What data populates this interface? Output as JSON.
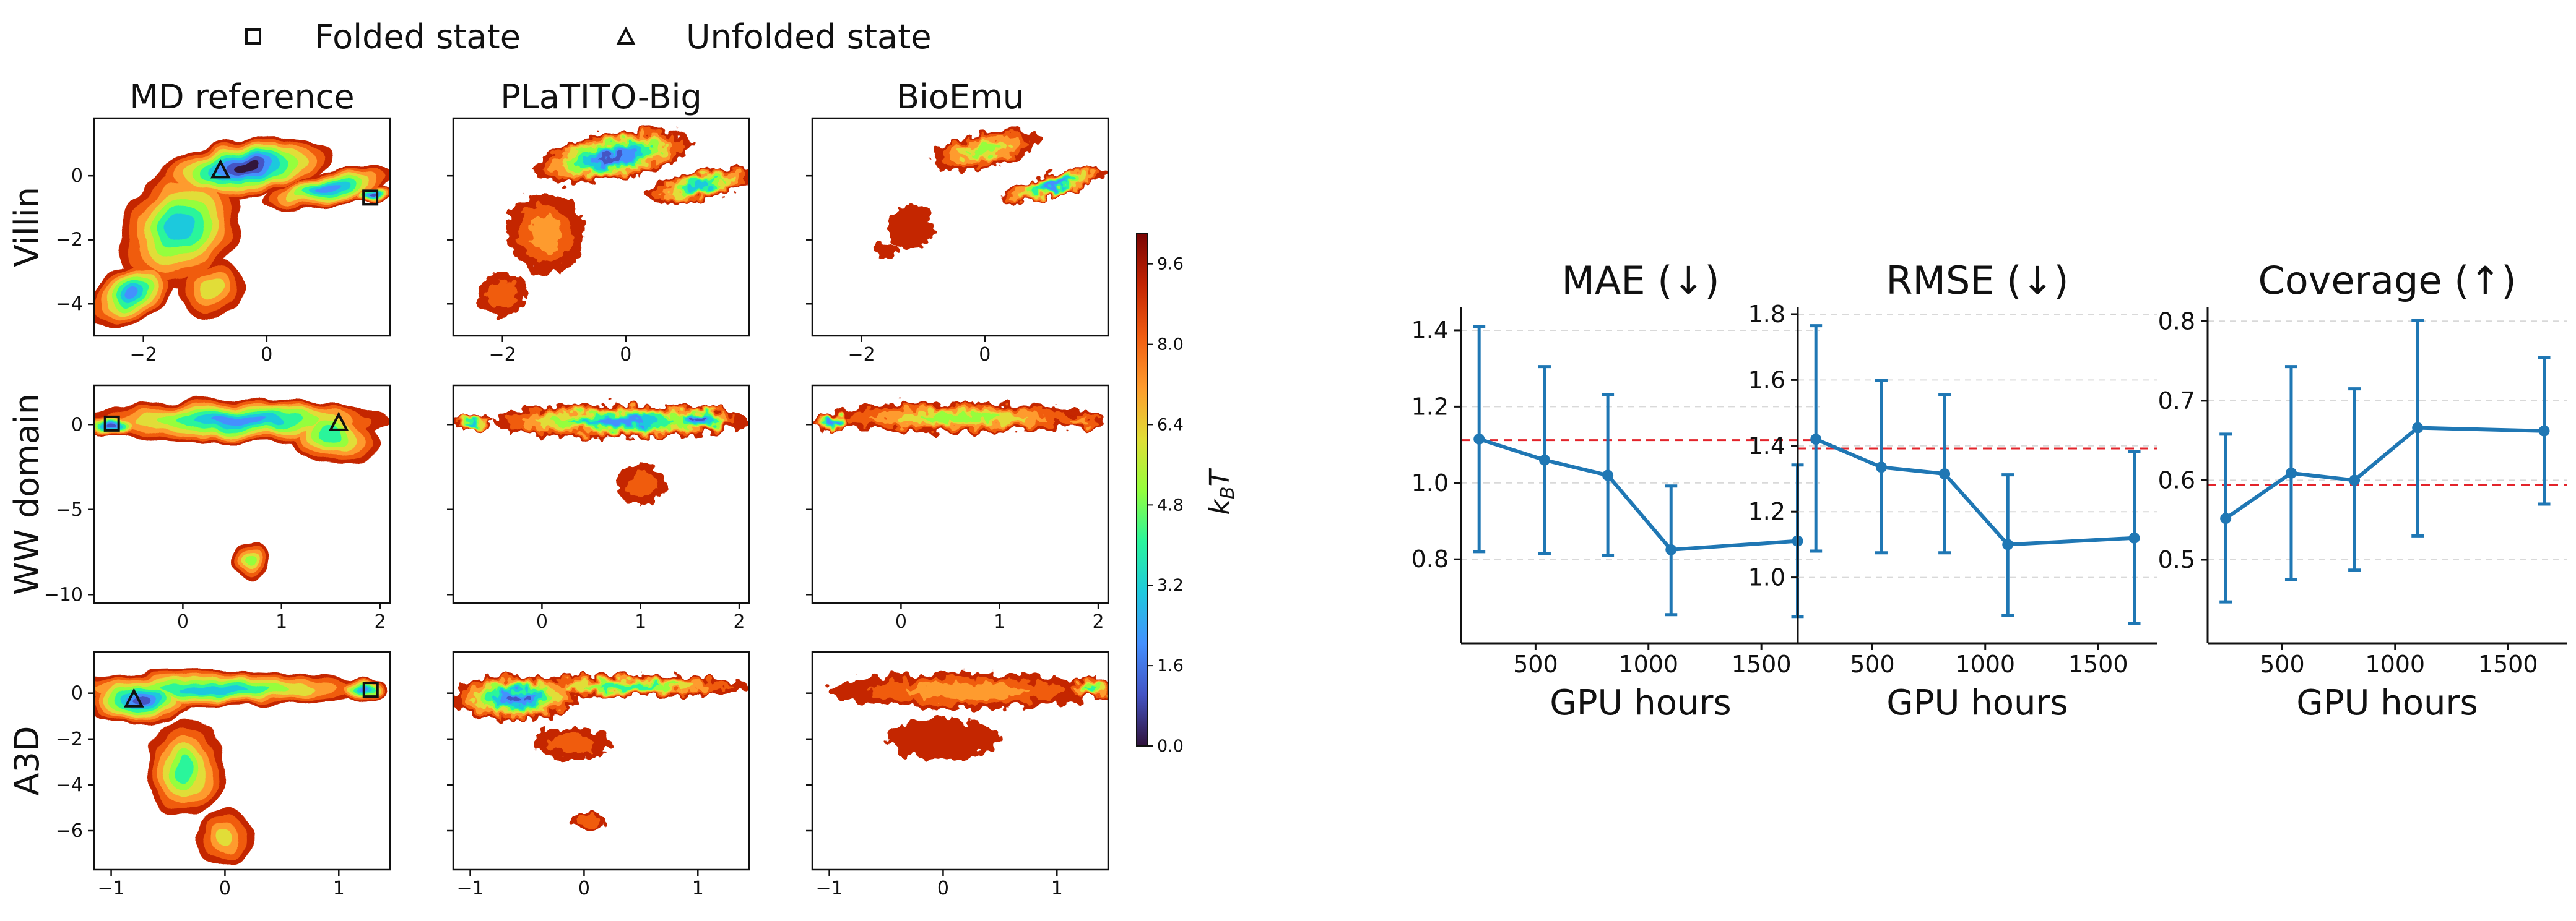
{
  "legend": {
    "items": [
      {
        "label": "Folded state",
        "marker": "square"
      },
      {
        "label": "Unfolded state",
        "marker": "triangle"
      }
    ]
  },
  "colors": {
    "ink": "#111111",
    "series_line": "#1f77b4",
    "baseline": "#e3242b",
    "grid": "#d9d9d9",
    "turbo_scale": [
      "#30123b",
      "#4454c4",
      "#4490fe",
      "#1fc9dd",
      "#2af59b",
      "#95fe3c",
      "#e1dd37",
      "#fe9b2d",
      "#f05c11",
      "#c42503",
      "#7a0403"
    ]
  },
  "chart_data": [
    {
      "type": "heatmap",
      "panel": "free-energy-grid",
      "columns": [
        "MD reference",
        "PLaTITO-Big",
        "BioEmu"
      ],
      "rows": [
        {
          "name": "Villin",
          "xticks": [
            -2,
            0
          ],
          "yticks": [
            -4,
            -2,
            0
          ],
          "xlim": [
            -2.8,
            2.0
          ],
          "ylim": [
            -5.0,
            1.8
          ],
          "markers": [
            {
              "shape": "triangle",
              "x": -0.75,
              "y": 0.15
            },
            {
              "shape": "square",
              "x": 1.68,
              "y": -0.68
            }
          ]
        },
        {
          "name": "WW domain",
          "xticks": [
            0,
            1,
            2
          ],
          "yticks": [
            -10,
            -5,
            0
          ],
          "xlim": [
            -0.9,
            2.1
          ],
          "ylim": [
            -10.5,
            2.3
          ],
          "markers": [
            {
              "shape": "square",
              "x": -0.72,
              "y": 0.05
            },
            {
              "shape": "triangle",
              "x": 1.58,
              "y": 0.05
            }
          ]
        },
        {
          "name": "A3D",
          "xticks": [
            -1,
            0,
            1
          ],
          "yticks": [
            -6,
            -4,
            -2,
            0
          ],
          "xlim": [
            -1.15,
            1.45
          ],
          "ylim": [
            -7.7,
            1.8
          ],
          "markers": [
            {
              "shape": "triangle",
              "x": -0.8,
              "y": -0.3
            },
            {
              "shape": "square",
              "x": 1.28,
              "y": 0.15
            }
          ]
        }
      ],
      "colorbar": {
        "label": "k_BT",
        "ticks": [
          "0.0",
          "1.6",
          "3.2",
          "4.8",
          "6.4",
          "8.0",
          "9.6"
        ],
        "range": [
          0,
          10.2
        ]
      }
    },
    {
      "type": "line",
      "title": "MAE (↓)",
      "xlabel": "GPU hours",
      "x": [
        250,
        540,
        820,
        1100,
        1660
      ],
      "values": [
        1.115,
        1.06,
        1.02,
        0.825,
        0.848
      ],
      "err_low": [
        0.82,
        0.815,
        0.81,
        0.655,
        0.65
      ],
      "err_high": [
        1.41,
        1.305,
        1.232,
        0.992,
        1.047
      ],
      "baseline": 1.112,
      "xticks": [
        500,
        1000,
        1500
      ],
      "yticks": [
        0.8,
        1.0,
        1.2,
        1.4
      ],
      "xlim": [
        170,
        1760
      ],
      "ylim": [
        0.58,
        1.455
      ]
    },
    {
      "type": "line",
      "title": "RMSE (↓)",
      "xlabel": "GPU hours",
      "x": [
        250,
        540,
        820,
        1100,
        1660
      ],
      "values": [
        1.42,
        1.335,
        1.315,
        1.1,
        1.12
      ],
      "err_low": [
        1.08,
        1.075,
        1.075,
        0.885,
        0.86
      ],
      "err_high": [
        1.765,
        1.598,
        1.556,
        1.312,
        1.383
      ],
      "baseline": 1.392,
      "xticks": [
        500,
        1000,
        1500
      ],
      "yticks": [
        1.0,
        1.2,
        1.4,
        1.6,
        1.8
      ],
      "xlim": [
        170,
        1760
      ],
      "ylim": [
        0.8,
        1.815
      ]
    },
    {
      "type": "line",
      "title": "Coverage (↑)",
      "xlabel": "GPU hours",
      "x": [
        250,
        540,
        820,
        1100,
        1660
      ],
      "values": [
        0.552,
        0.609,
        0.6,
        0.666,
        0.662
      ],
      "err_low": [
        0.447,
        0.475,
        0.487,
        0.53,
        0.57
      ],
      "err_high": [
        0.658,
        0.743,
        0.715,
        0.801,
        0.754
      ],
      "baseline": 0.594,
      "xticks": [
        500,
        1000,
        1500
      ],
      "yticks": [
        0.5,
        0.6,
        0.7,
        0.8
      ],
      "xlim": [
        170,
        1760
      ],
      "ylim": [
        0.395,
        0.815
      ]
    }
  ]
}
